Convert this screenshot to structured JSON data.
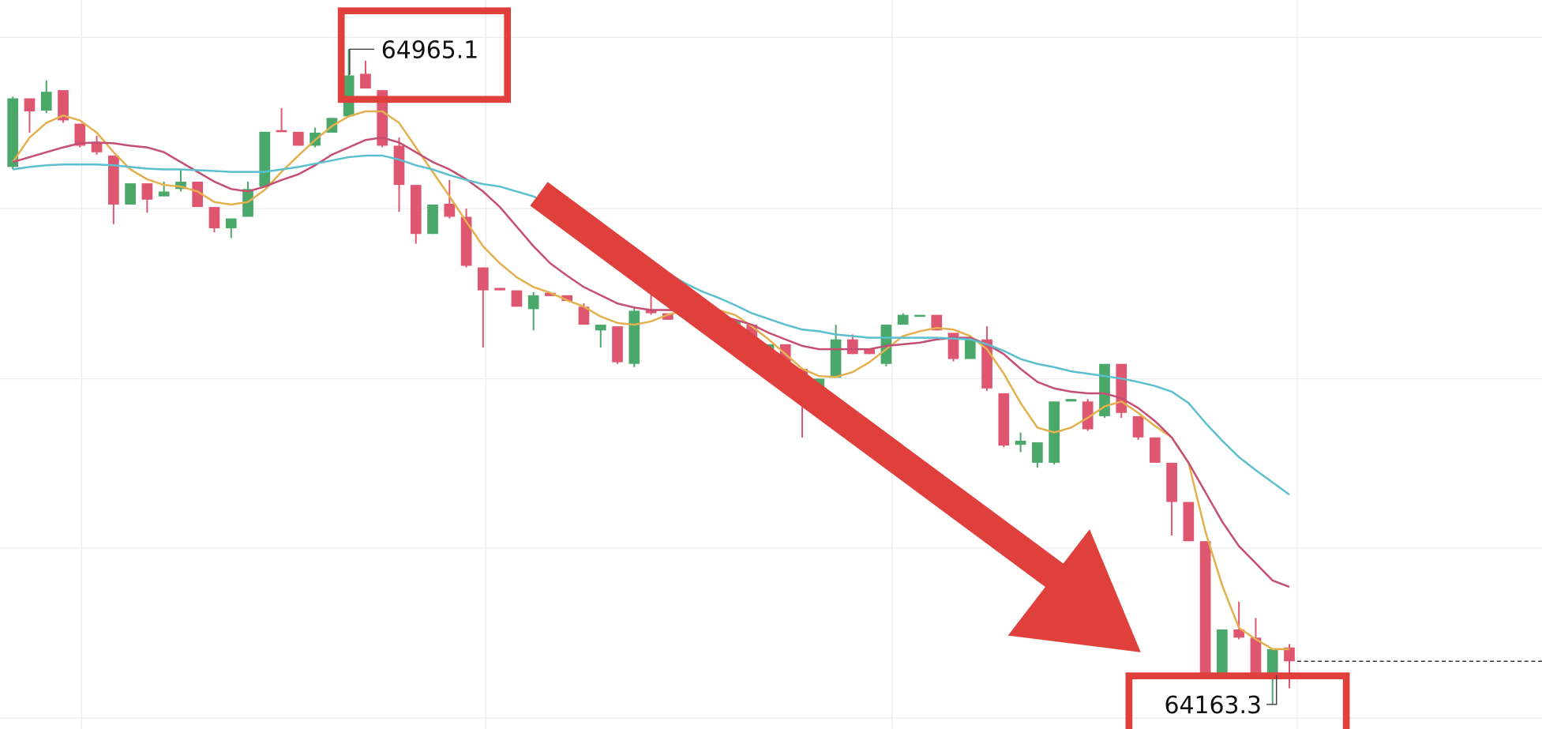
{
  "chart_data": {
    "type": "candlestick",
    "up_color": "#4aa86a",
    "down_color": "#df5670",
    "ylim": [
      64133.2,
      65025.3
    ],
    "open": [
      64821,
      64905,
      64890,
      64915,
      64874,
      64850,
      64835,
      64775,
      64801,
      64785,
      64794,
      64803,
      64772,
      64746,
      64760,
      64797,
      64866,
      64864,
      64847,
      64863,
      64883,
      64935,
      64915,
      64847,
      64799,
      64739,
      64776,
      64760,
      64698,
      64673,
      64670,
      64647,
      64667,
      64664,
      64650,
      64621,
      64626,
      64580,
      64646,
      64642,
      64638,
      64645,
      64640,
      64618,
      64628,
      64598,
      64604,
      64574,
      64550,
      64563,
      64610,
      64598,
      64580,
      64628,
      64638,
      64640,
      64618,
      64586,
      64610,
      64544,
      64481,
      64459,
      64459,
      64534,
      64534,
      64516,
      64580,
      64516,
      64490,
      64459,
      64411,
      64363,
      64201,
      64255,
      64245,
      64201,
      64233
    ],
    "high": [
      64907,
      64905,
      64927,
      64915,
      64874,
      64859,
      64835,
      64801,
      64801,
      64803,
      64818,
      64803,
      64772,
      64758,
      64803,
      64864,
      64893,
      64864,
      64869,
      64881,
      64965.1,
      64951,
      64915,
      64857,
      64799,
      64775,
      64805,
      64770,
      64698,
      64673,
      64670,
      64668,
      64667,
      64664,
      64654,
      64628,
      64626,
      64650,
      64667,
      64642,
      64642,
      64645,
      64645,
      64633,
      64628,
      64604,
      64604,
      64574,
      64562,
      64628,
      64616,
      64598,
      64628,
      64642,
      64640,
      64640,
      64618,
      64610,
      64626,
      64544,
      64496,
      64484,
      64534,
      64537,
      64537,
      64580,
      64580,
      64516,
      64490,
      64459,
      64411,
      64363,
      64255,
      64289,
      64269,
      64231,
      64237
    ],
    "low": [
      64818,
      64863,
      64887,
      64875,
      64845,
      64836,
      64751,
      64775,
      64765,
      64785,
      64791,
      64772,
      64741,
      64734,
      64760,
      64797,
      64864,
      64847,
      64845,
      64863,
      64883,
      64917,
      64845,
      64766,
      64727,
      64739,
      64758,
      64698,
      64600,
      64670,
      64650,
      64621,
      64663,
      64657,
      64628,
      64600,
      64580,
      64576,
      64640,
      64634,
      64638,
      64638,
      64640,
      64618,
      64598,
      64598,
      64574,
      64490,
      64550,
      64563,
      64592,
      64592,
      64577,
      64628,
      64638,
      64621,
      64583,
      64586,
      64547,
      64478,
      64472,
      64453,
      64457,
      64534,
      64498,
      64514,
      64514,
      64487,
      64459,
      64370,
      64363,
      64201,
      64201,
      64243,
      64201,
      64163.3,
      64183
    ],
    "close": [
      64905,
      64889,
      64913,
      64878,
      64847,
      64839,
      64775,
      64801,
      64781,
      64791,
      64803,
      64772,
      64746,
      64758,
      64794,
      64864,
      64864,
      64847,
      64863,
      64881,
      64933,
      64917,
      64847,
      64799,
      64739,
      64775,
      64760,
      64700,
      64670,
      64670,
      64650,
      64664,
      64663,
      64657,
      64628,
      64628,
      64582,
      64645,
      64642,
      64634,
      64642,
      64638,
      64645,
      64633,
      64598,
      64604,
      64574,
      64538,
      64562,
      64610,
      64592,
      64592,
      64628,
      64640,
      64640,
      64621,
      64586,
      64610,
      64550,
      64480,
      64486,
      64484,
      64534,
      64537,
      64500,
      64580,
      64520,
      64490,
      64459,
      64411,
      64363,
      64201,
      64255,
      64245,
      64201,
      64231,
      64216
    ],
    "overlays": [
      {
        "color": "#e4b04e",
        "values": [
          64827,
          64857,
          64875,
          64884,
          64878,
          64863,
          64839,
          64818,
          64806,
          64799,
          64797,
          64791,
          64778,
          64775,
          64778,
          64793,
          64815,
          64835,
          64854,
          64871,
          64883,
          64889,
          64889,
          64875,
          64845,
          64815,
          64785,
          64754,
          64724,
          64703,
          64686,
          64674,
          64667,
          64658,
          64650,
          64638,
          64630,
          64628,
          64632,
          64640,
          64646,
          64649,
          64646,
          64640,
          64626,
          64610,
          64592,
          64574,
          64565,
          64564,
          64570,
          64582,
          64598,
          64614,
          64620,
          64624,
          64622,
          64614,
          64598,
          64568,
          64532,
          64502,
          64496,
          64502,
          64514,
          64528,
          64534,
          64520,
          64504,
          64490,
          64459,
          64375,
          64309,
          64257,
          64243,
          64231,
          64231
        ]
      },
      {
        "color": "#c44f72",
        "values": [
          64827,
          64833,
          64839,
          64845,
          64850,
          64851,
          64850,
          64847,
          64845,
          64839,
          64827,
          64815,
          64803,
          64794,
          64791,
          64797,
          64805,
          64812,
          64823,
          64836,
          64845,
          64854,
          64857,
          64851,
          64839,
          64827,
          64818,
          64806,
          64791,
          64772,
          64748,
          64724,
          64703,
          64688,
          64674,
          64664,
          64654,
          64649,
          64646,
          64646,
          64645,
          64642,
          64640,
          64634,
          64628,
          64618,
          64610,
          64602,
          64598,
          64598,
          64598,
          64598,
          64602,
          64604,
          64606,
          64610,
          64612,
          64612,
          64604,
          64592,
          64574,
          64558,
          64550,
          64546,
          64544,
          64544,
          64538,
          64526,
          64510,
          64490,
          64459,
          64423,
          64387,
          64357,
          64336,
          64315,
          64307
        ]
      },
      {
        "color": "#5cbfcd",
        "values": [
          64818,
          64821,
          64823,
          64824,
          64824,
          64824,
          64823,
          64821,
          64819,
          64818,
          64818,
          64817,
          64816,
          64815,
          64815,
          64815,
          64818,
          64821,
          64825,
          64829,
          64833,
          64835,
          64835,
          64830,
          64823,
          64818,
          64811,
          64805,
          64800,
          64797,
          64791,
          64785,
          64775,
          64763,
          64751,
          64739,
          64727,
          64715,
          64703,
          64691,
          64679,
          64669,
          64661,
          64652,
          64642,
          64635,
          64628,
          64622,
          64620,
          64616,
          64614,
          64612,
          64612,
          64612,
          64612,
          64612,
          64611,
          64610,
          64604,
          64596,
          64586,
          64580,
          64576,
          64571,
          64568,
          64565,
          64562,
          64558,
          64553,
          64546,
          64532,
          64508,
          64486,
          64466,
          64450,
          64435,
          64420
        ]
      }
    ],
    "annotations": [
      "64965.1",
      "64163.3"
    ]
  }
}
